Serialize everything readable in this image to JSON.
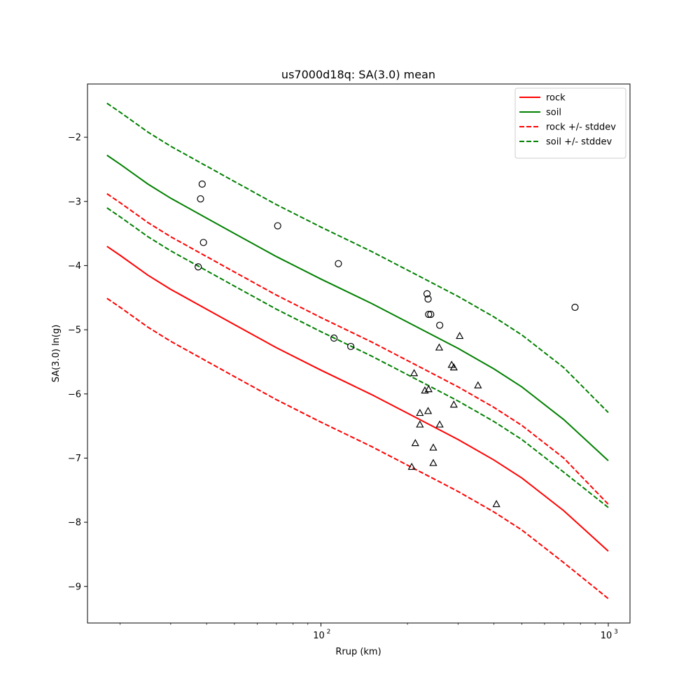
{
  "chart_data": {
    "type": "line",
    "title": "us7000d18q: SA(3.0) mean",
    "xlabel": "Rrup (km)",
    "ylabel": "SA(3.0) ln(g)",
    "xscale": "log",
    "xlim": [
      15.4,
      1190
    ],
    "ylim": [
      -9.57,
      -1.17
    ],
    "x_major_ticks": [
      {
        "value": 100,
        "base": "10",
        "exp": "2"
      },
      {
        "value": 1000,
        "base": "10",
        "exp": "3"
      }
    ],
    "x_minor_ticks": [
      20,
      30,
      40,
      50,
      60,
      70,
      80,
      90,
      200,
      300,
      400,
      500,
      600,
      700,
      800,
      900
    ],
    "y_ticks": [
      {
        "value": -9,
        "label": "−9"
      },
      {
        "value": -8,
        "label": "−8"
      },
      {
        "value": -7,
        "label": "−7"
      },
      {
        "value": -6,
        "label": "−6"
      },
      {
        "value": -5,
        "label": "−5"
      },
      {
        "value": -4,
        "label": "−4"
      },
      {
        "value": -3,
        "label": "−3"
      },
      {
        "value": -2,
        "label": "−2"
      }
    ],
    "grid": false,
    "legend_position": "top-right",
    "series": [
      {
        "name": "rock",
        "color": "#ff0000",
        "style": "solid",
        "points": [
          [
            18,
            -3.7
          ],
          [
            20,
            -3.84
          ],
          [
            25,
            -4.15
          ],
          [
            30,
            -4.37
          ],
          [
            40,
            -4.68
          ],
          [
            50,
            -4.92
          ],
          [
            70,
            -5.28
          ],
          [
            100,
            -5.63
          ],
          [
            150,
            -6.01
          ],
          [
            200,
            -6.3
          ],
          [
            300,
            -6.71
          ],
          [
            400,
            -7.03
          ],
          [
            500,
            -7.31
          ],
          [
            700,
            -7.82
          ],
          [
            1000,
            -8.45
          ]
        ]
      },
      {
        "name": "soil",
        "color": "#008000",
        "style": "solid",
        "points": [
          [
            18,
            -2.28
          ],
          [
            20,
            -2.42
          ],
          [
            25,
            -2.73
          ],
          [
            30,
            -2.95
          ],
          [
            40,
            -3.26
          ],
          [
            50,
            -3.5
          ],
          [
            70,
            -3.86
          ],
          [
            100,
            -4.21
          ],
          [
            150,
            -4.59
          ],
          [
            200,
            -4.88
          ],
          [
            300,
            -5.29
          ],
          [
            400,
            -5.61
          ],
          [
            500,
            -5.89
          ],
          [
            700,
            -6.4
          ],
          [
            1000,
            -7.04
          ]
        ]
      },
      {
        "name": "rock +/- stddev",
        "color": "#ff0000",
        "style": "dashed",
        "points": [
          [
            18,
            -2.88
          ],
          [
            20,
            -3.02
          ],
          [
            25,
            -3.33
          ],
          [
            30,
            -3.55
          ],
          [
            40,
            -3.86
          ],
          [
            50,
            -4.1
          ],
          [
            70,
            -4.46
          ],
          [
            100,
            -4.81
          ],
          [
            150,
            -5.19
          ],
          [
            200,
            -5.48
          ],
          [
            300,
            -5.89
          ],
          [
            400,
            -6.21
          ],
          [
            500,
            -6.49
          ],
          [
            700,
            -7.0
          ],
          [
            1000,
            -7.72
          ]
        ]
      },
      {
        "name": "",
        "color": "#ff0000",
        "style": "dashed",
        "points": [
          [
            18,
            -4.51
          ],
          [
            20,
            -4.65
          ],
          [
            25,
            -4.96
          ],
          [
            30,
            -5.18
          ],
          [
            40,
            -5.49
          ],
          [
            50,
            -5.73
          ],
          [
            70,
            -6.09
          ],
          [
            100,
            -6.44
          ],
          [
            150,
            -6.82
          ],
          [
            200,
            -7.11
          ],
          [
            300,
            -7.52
          ],
          [
            400,
            -7.84
          ],
          [
            500,
            -8.12
          ],
          [
            700,
            -8.63
          ],
          [
            1000,
            -9.19
          ]
        ]
      },
      {
        "name": "soil +/- stddev",
        "color": "#008000",
        "style": "dashed",
        "points": [
          [
            18,
            -1.47
          ],
          [
            20,
            -1.61
          ],
          [
            25,
            -1.92
          ],
          [
            30,
            -2.14
          ],
          [
            40,
            -2.45
          ],
          [
            50,
            -2.69
          ],
          [
            70,
            -3.05
          ],
          [
            100,
            -3.4
          ],
          [
            150,
            -3.78
          ],
          [
            200,
            -4.07
          ],
          [
            300,
            -4.48
          ],
          [
            400,
            -4.8
          ],
          [
            500,
            -5.08
          ],
          [
            700,
            -5.59
          ],
          [
            1000,
            -6.29
          ]
        ]
      },
      {
        "name": "",
        "color": "#008000",
        "style": "dashed",
        "points": [
          [
            18,
            -3.1
          ],
          [
            20,
            -3.24
          ],
          [
            25,
            -3.55
          ],
          [
            30,
            -3.77
          ],
          [
            40,
            -4.08
          ],
          [
            50,
            -4.32
          ],
          [
            70,
            -4.68
          ],
          [
            100,
            -5.03
          ],
          [
            150,
            -5.41
          ],
          [
            200,
            -5.7
          ],
          [
            300,
            -6.11
          ],
          [
            400,
            -6.43
          ],
          [
            500,
            -6.71
          ],
          [
            700,
            -7.22
          ],
          [
            1000,
            -7.77
          ]
        ]
      }
    ],
    "scatter": [
      {
        "marker": "circle",
        "points": [
          [
            38.6,
            -2.73
          ],
          [
            38.1,
            -2.96
          ],
          [
            39.0,
            -3.64
          ],
          [
            37.4,
            -4.02
          ],
          [
            70.7,
            -3.38
          ],
          [
            115,
            -3.97
          ],
          [
            111,
            -5.13
          ],
          [
            127,
            -5.26
          ],
          [
            234,
            -4.44
          ],
          [
            236,
            -4.52
          ],
          [
            237,
            -4.76
          ],
          [
            241,
            -4.76
          ],
          [
            259,
            -4.93
          ],
          [
            766,
            -4.65
          ]
        ]
      },
      {
        "marker": "triangle",
        "points": [
          [
            211,
            -5.68
          ],
          [
            258,
            -5.28
          ],
          [
            304,
            -5.1
          ],
          [
            285,
            -5.55
          ],
          [
            290,
            -5.59
          ],
          [
            352,
            -5.87
          ],
          [
            230,
            -5.95
          ],
          [
            237,
            -5.93
          ],
          [
            290,
            -6.17
          ],
          [
            221,
            -6.3
          ],
          [
            236,
            -6.27
          ],
          [
            221,
            -6.48
          ],
          [
            259,
            -6.48
          ],
          [
            213,
            -6.77
          ],
          [
            246,
            -6.84
          ],
          [
            246,
            -7.08
          ],
          [
            207,
            -7.14
          ],
          [
            408,
            -7.72
          ]
        ]
      }
    ]
  }
}
